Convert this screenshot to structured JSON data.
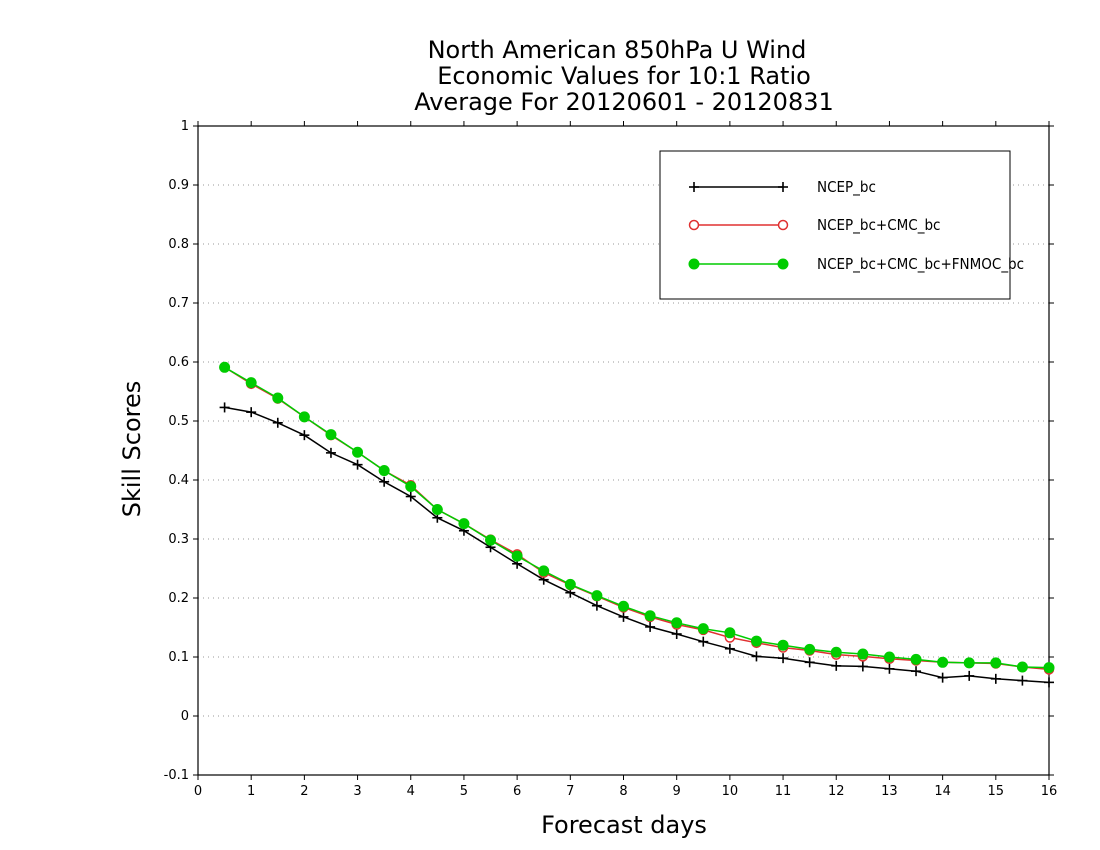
{
  "chart_data": {
    "type": "line",
    "title": [
      "North American 850hPa U Wind",
      "Economic Values for 10:1 Ratio",
      "Average For 20120601 - 20120831"
    ],
    "xlabel": "Forecast days",
    "ylabel": "Skill Scores",
    "xlim": [
      0,
      16
    ],
    "ylim": [
      -0.1,
      1
    ],
    "xticks": [
      "0",
      "1",
      "2",
      "3",
      "4",
      "5",
      "6",
      "7",
      "8",
      "9",
      "10",
      "11",
      "12",
      "13",
      "14",
      "15",
      "16"
    ],
    "yticks": [
      "-0.1",
      "0",
      "0.1",
      "0.2",
      "0.3",
      "0.4",
      "0.5",
      "0.6",
      "0.7",
      "0.8",
      "0.9",
      "1"
    ],
    "grid": true,
    "legend_position": "top-right",
    "x": [
      0.5,
      1,
      1.5,
      2,
      2.5,
      3,
      3.5,
      4,
      4.5,
      5,
      5.5,
      6,
      6.5,
      7,
      7.5,
      8,
      8.5,
      9,
      9.5,
      10,
      10.5,
      11,
      11.5,
      12,
      12.5,
      13,
      13.5,
      14,
      14.5,
      15,
      15.5,
      16
    ],
    "series": [
      {
        "name": "NCEP_bc",
        "color": "#000000",
        "marker": "plus",
        "values": [
          0.523,
          0.515,
          0.497,
          0.476,
          0.446,
          0.426,
          0.397,
          0.372,
          0.336,
          0.314,
          0.286,
          0.258,
          0.231,
          0.209,
          0.187,
          0.168,
          0.151,
          0.139,
          0.126,
          0.114,
          0.101,
          0.098,
          0.091,
          0.085,
          0.084,
          0.08,
          0.076,
          0.065,
          0.068,
          0.063,
          0.06,
          0.057
        ]
      },
      {
        "name": "NCEP_bc+CMC_bc",
        "color": "#e03030",
        "marker": "open-circle",
        "values": [
          0.591,
          0.563,
          0.538,
          0.507,
          0.476,
          0.447,
          0.416,
          0.391,
          0.35,
          0.326,
          0.299,
          0.274,
          0.243,
          0.222,
          0.203,
          0.184,
          0.168,
          0.155,
          0.146,
          0.133,
          0.124,
          0.116,
          0.111,
          0.104,
          0.101,
          0.097,
          0.094,
          0.091,
          0.09,
          0.089,
          0.083,
          0.079
        ]
      },
      {
        "name": "NCEP_bc+CMC_bc+FNMOC_bc",
        "color": "#00cc00",
        "marker": "filled-circle",
        "values": [
          0.591,
          0.565,
          0.539,
          0.507,
          0.477,
          0.447,
          0.416,
          0.389,
          0.35,
          0.326,
          0.298,
          0.271,
          0.246,
          0.223,
          0.204,
          0.186,
          0.17,
          0.158,
          0.148,
          0.141,
          0.127,
          0.12,
          0.113,
          0.108,
          0.105,
          0.1,
          0.096,
          0.091,
          0.09,
          0.09,
          0.083,
          0.082
        ]
      }
    ]
  }
}
